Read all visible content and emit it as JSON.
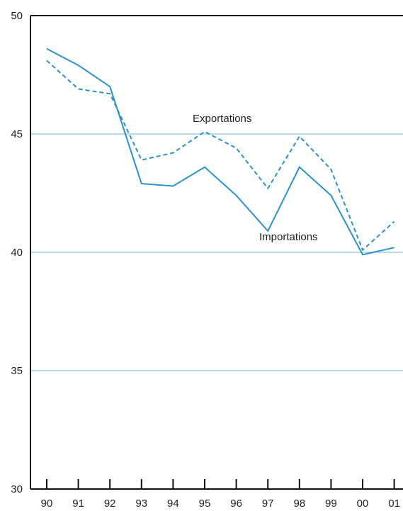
{
  "chart_data": {
    "type": "line",
    "title": "",
    "xlabel": "",
    "ylabel": "",
    "categories": [
      "90",
      "91",
      "92",
      "93",
      "94",
      "95",
      "96",
      "97",
      "98",
      "99",
      "00",
      "01"
    ],
    "ylim": [
      30,
      50
    ],
    "yticks": [
      "50",
      "45",
      "40",
      "35",
      "30"
    ],
    "grid": true,
    "series": [
      {
        "name": "Importations",
        "style": "solid",
        "values": [
          48.6,
          47.9,
          47.0,
          42.9,
          42.8,
          43.6,
          42.4,
          40.9,
          43.6,
          42.4,
          39.9,
          40.2
        ]
      },
      {
        "name": "Exportations",
        "style": "dashed",
        "values": [
          48.1,
          46.9,
          46.7,
          43.9,
          44.2,
          45.1,
          44.4,
          42.7,
          44.9,
          43.5,
          40.1,
          41.3
        ]
      }
    ],
    "annotations": [
      {
        "text": "Exportations",
        "series": "Exportations"
      },
      {
        "text": "Importations",
        "series": "Importations"
      }
    ],
    "colors": {
      "line": "#2a93c8",
      "grid": "#b9d9ec",
      "axis": "#111111"
    }
  }
}
